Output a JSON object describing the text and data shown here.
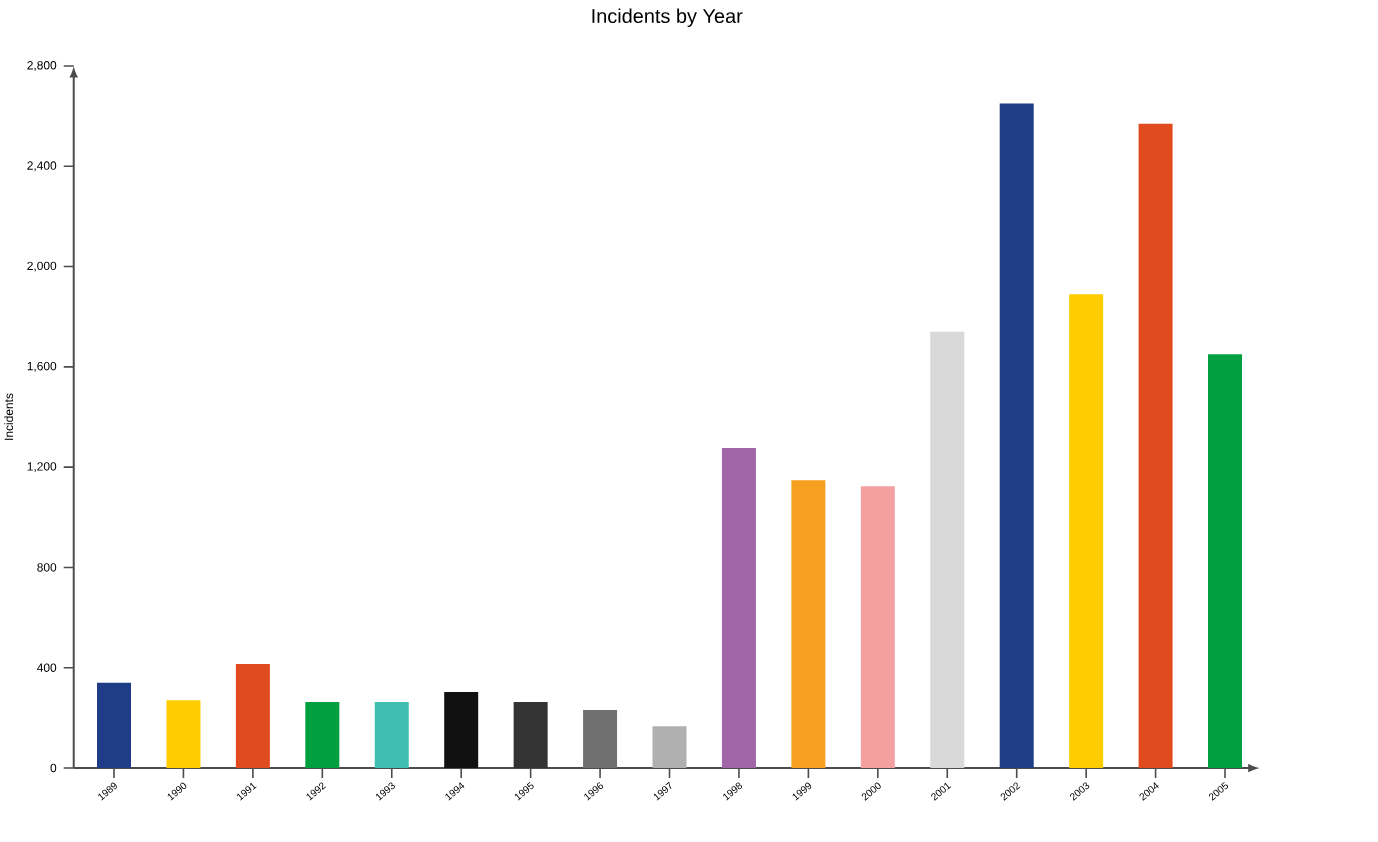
{
  "chart_data": {
    "type": "bar",
    "title": "Incidents by Year",
    "ylabel": "Incidents",
    "categories": [
      "1989",
      "1990",
      "1991",
      "1992",
      "1993",
      "1994",
      "1995",
      "1996",
      "1997",
      "1998",
      "1999",
      "2000",
      "2001",
      "2002",
      "2003",
      "2004",
      "2005"
    ],
    "values": [
      340,
      270,
      415,
      263,
      263,
      303,
      263,
      231,
      167,
      1276,
      1148,
      1124,
      1740,
      2650,
      1890,
      2570,
      1650
    ],
    "colors": [
      "#1f3c88",
      "#ffcc00",
      "#e04a1f",
      "#00a040",
      "#40bfb0",
      "#111111",
      "#333333",
      "#707070",
      "#b0b0b0",
      "#a066a8",
      "#f5a020",
      "#f4a0a0",
      "#d9d9d9",
      "#1f3c88",
      "#ffcc00",
      "#e04a1f",
      "#00a040"
    ],
    "ylim": [
      0,
      2800
    ],
    "yticks": [
      0,
      400,
      800,
      {
        "value": 1200,
        "label": "1,200"
      },
      {
        "value": 1600,
        "label": "1,600"
      },
      {
        "value": 2000,
        "label": "2,000"
      },
      {
        "value": 2400,
        "label": "2,400"
      },
      {
        "value": 2800,
        "label": "2,800"
      }
    ],
    "grid": false
  }
}
